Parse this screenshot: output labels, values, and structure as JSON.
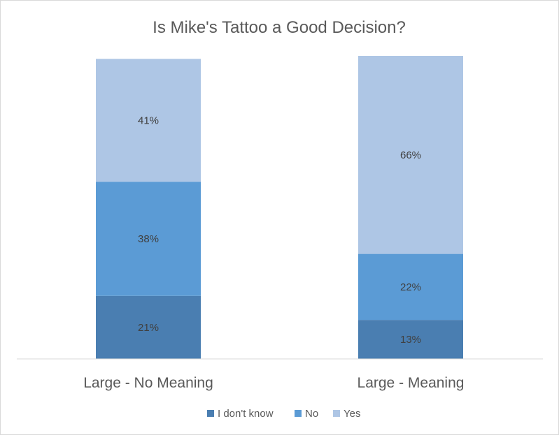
{
  "chart_data": {
    "type": "bar",
    "stacked": true,
    "title": "Is Mike's Tattoo a Good Decision?",
    "xlabel": "",
    "ylabel": "",
    "categories": [
      "Large - No Meaning",
      "Large - Meaning"
    ],
    "series": [
      {
        "name": "I don't know",
        "values": [
          21,
          13
        ],
        "labels": [
          "21%",
          "13%"
        ],
        "color": "#4a7eb1"
      },
      {
        "name": "No",
        "values": [
          38,
          22
        ],
        "labels": [
          "38%",
          "22%"
        ],
        "color": "#5b9bd5"
      },
      {
        "name": "Yes",
        "values": [
          41,
          66
        ],
        "labels": [
          "41%",
          "66%"
        ],
        "color": "#aec6e5"
      }
    ],
    "ylim": [
      0,
      101
    ],
    "unit": "%",
    "grid": false,
    "legend": "bottom"
  }
}
